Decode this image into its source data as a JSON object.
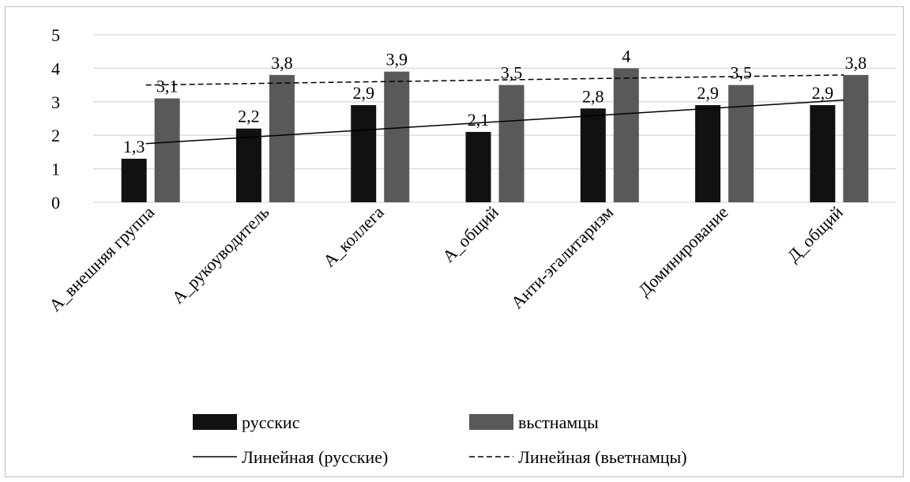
{
  "chart_data": {
    "type": "bar",
    "categories": [
      "А_внешняя группа",
      "А_рукоуводитель",
      "А_коллега",
      "А_общий",
      "Анти-эгалитаризм",
      "Доминирование",
      "Д_общий"
    ],
    "series": [
      {
        "name": "русскис",
        "values": [
          1.3,
          2.2,
          2.9,
          2.1,
          2.8,
          2.9,
          2.9
        ],
        "labels": [
          "1,3",
          "2,2",
          "2,9",
          "2,1",
          "2,8",
          "2,9",
          "2,9"
        ],
        "color": "#111111"
      },
      {
        "name": "вьстнамцы",
        "values": [
          3.1,
          3.8,
          3.9,
          3.5,
          4.0,
          3.5,
          3.8
        ],
        "labels": [
          "3,1",
          "3,8",
          "3,9",
          "3,5",
          "4",
          "3,5",
          "3,8"
        ],
        "color": "#595959"
      }
    ],
    "trendlines": [
      {
        "name": "Линейная (русские)",
        "style": "solid",
        "start": 1.75,
        "end": 3.05
      },
      {
        "name": "Линейная (вьетнамцы)",
        "style": "dashed",
        "start": 3.5,
        "end": 3.8
      }
    ],
    "ylim": [
      0,
      5
    ],
    "yticks": [
      "0",
      "1",
      "2",
      "3",
      "4",
      "5"
    ],
    "grid": true,
    "legend_position": "bottom",
    "title": "",
    "xlabel": "",
    "ylabel": ""
  }
}
